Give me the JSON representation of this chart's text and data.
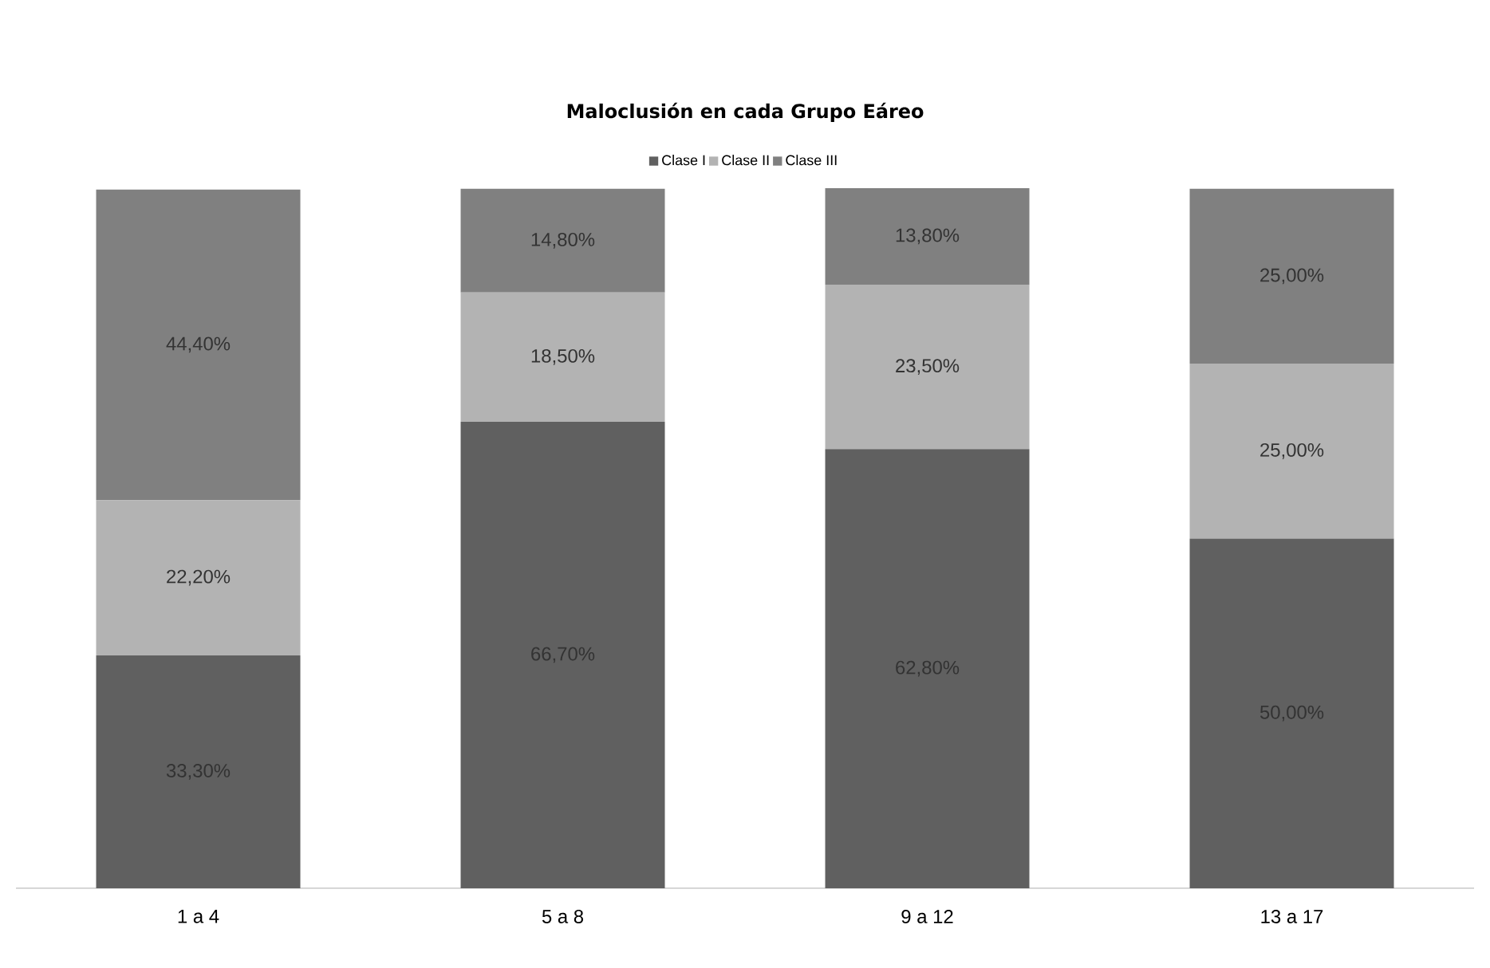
{
  "chart_data": {
    "type": "bar",
    "title": "Maloclusión en cada Grupo Eáreo",
    "stacked": true,
    "legend": "top",
    "categories": [
      "1 a 4",
      "5 a 8",
      "9 a 12",
      "13 a 17"
    ],
    "series": [
      {
        "name": "Clase I",
        "color": "#606060",
        "values": [
          33.3,
          66.7,
          62.8,
          50.0
        ],
        "value_labels": [
          "33,30%",
          "66,70%",
          "62,80%",
          "50,00%"
        ]
      },
      {
        "name": "Clase II",
        "color": "#b3b3b3",
        "values": [
          22.2,
          18.5,
          23.5,
          25.0
        ],
        "value_labels": [
          "22,20%",
          "18,50%",
          "23,50%",
          "25,00%"
        ]
      },
      {
        "name": "Clase III",
        "color": "#808080",
        "values": [
          44.4,
          14.8,
          13.8,
          25.0
        ],
        "value_labels": [
          "44,40%",
          "14,80%",
          "13,80%",
          "25,00%"
        ]
      }
    ]
  }
}
